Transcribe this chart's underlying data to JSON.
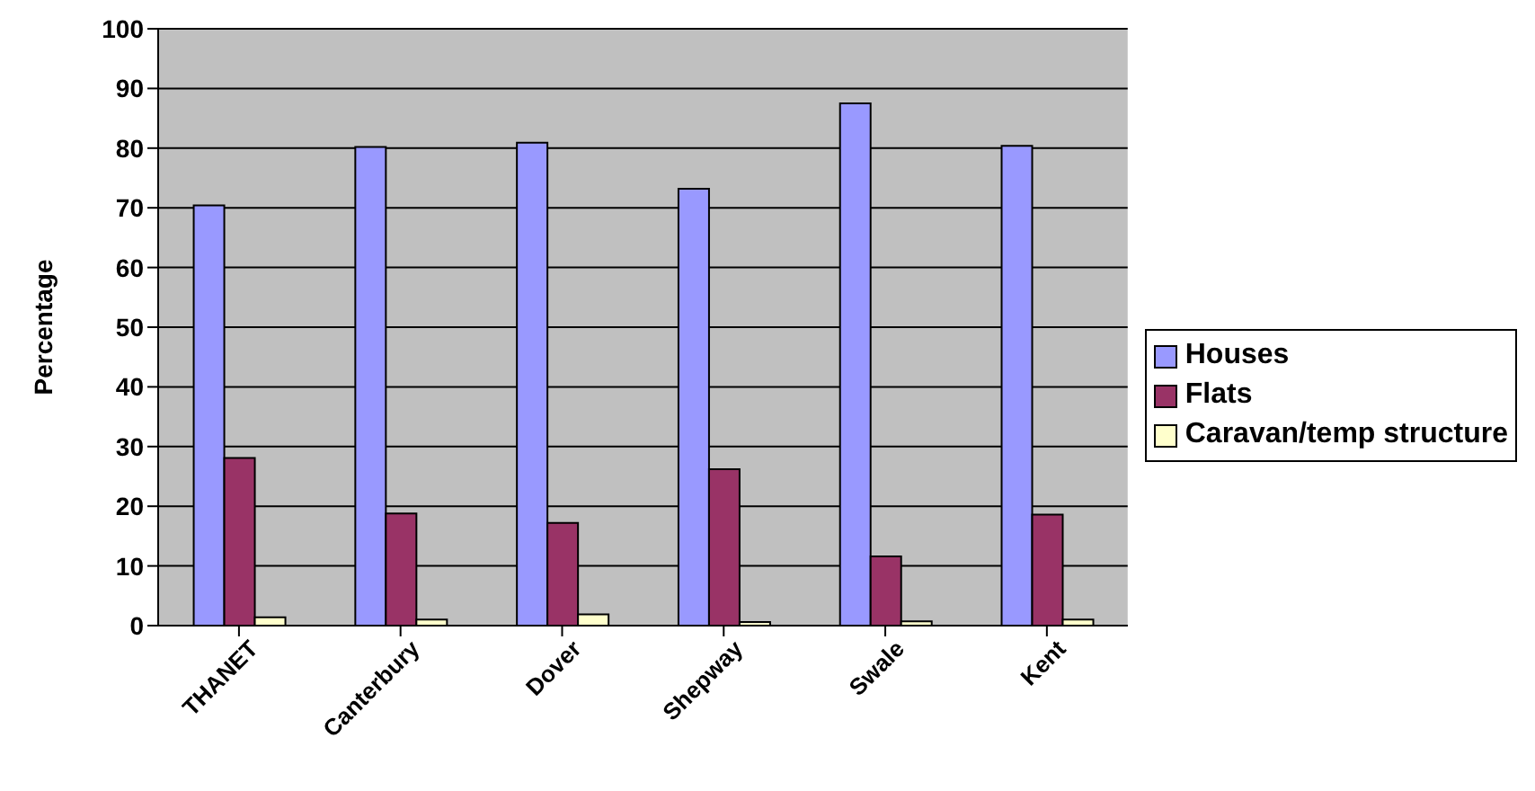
{
  "chart_data": {
    "type": "bar",
    "ylabel": "Percentage",
    "categories": [
      "THANET",
      "Canterbury",
      "Dover",
      "Shepway",
      "Swale",
      "Kent"
    ],
    "series": [
      {
        "name": "Houses",
        "color": "#9999ff",
        "values": [
          70.4,
          80.2,
          80.9,
          73.2,
          87.5,
          80.4
        ]
      },
      {
        "name": "Flats",
        "color": "#993366",
        "values": [
          28.1,
          18.8,
          17.2,
          26.2,
          11.6,
          18.6
        ]
      },
      {
        "name": "Caravan/temp structure",
        "color": "#ffffcc",
        "values": [
          1.4,
          1.0,
          1.9,
          0.6,
          0.7,
          1.0
        ]
      }
    ],
    "ylim": [
      0,
      100
    ],
    "yticks": [
      0,
      10,
      20,
      30,
      40,
      50,
      60,
      70,
      80,
      90,
      100
    ],
    "grid": "y",
    "legend": "right"
  }
}
